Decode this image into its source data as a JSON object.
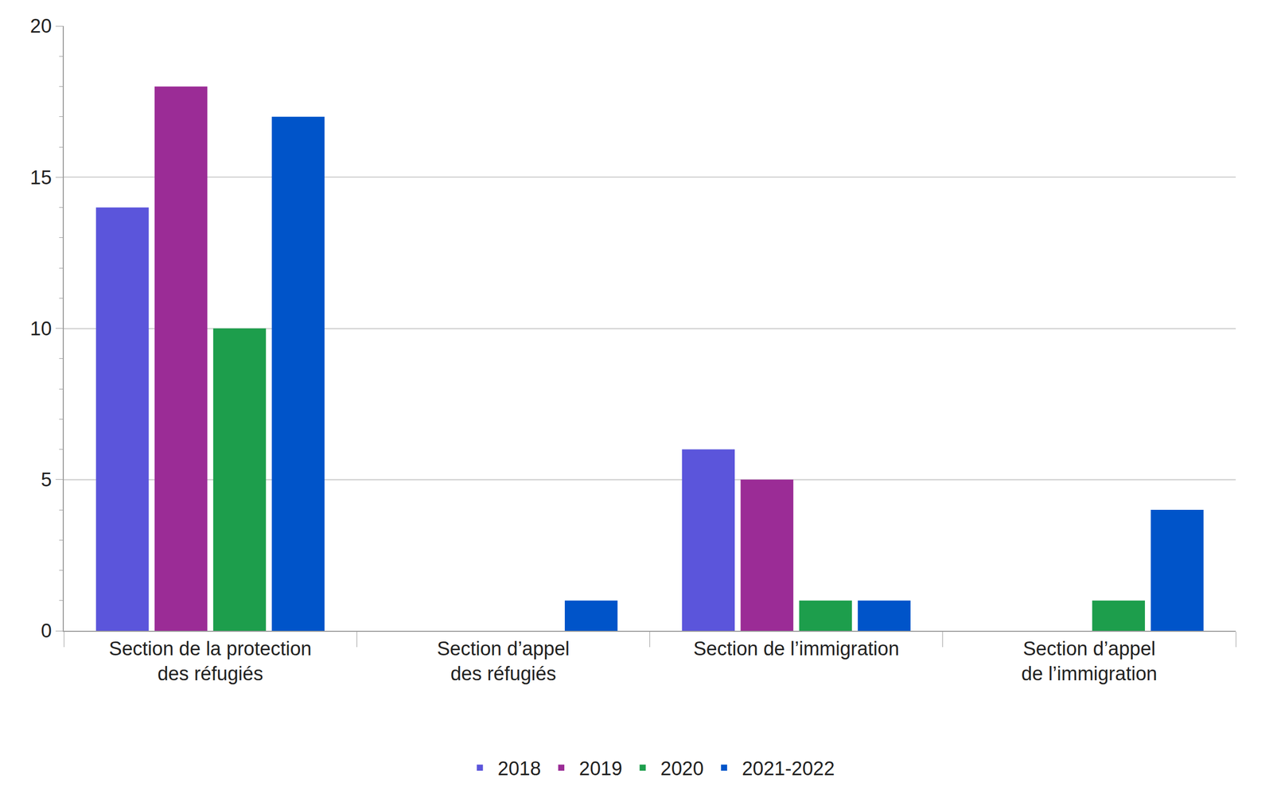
{
  "chart_data": {
    "type": "bar",
    "categories": [
      "Section de la protection\ndes réfugiés",
      "Section d’appel\ndes réfugiés",
      "Section de l’immigration",
      "Section d’appel\nde l’immigration"
    ],
    "series": [
      {
        "name": "2018",
        "color": "#5b55db",
        "values": [
          14,
          0,
          6,
          0
        ]
      },
      {
        "name": "2019",
        "color": "#9b2c96",
        "values": [
          18,
          0,
          5,
          0
        ]
      },
      {
        "name": "2020",
        "color": "#1d9e4c",
        "values": [
          10,
          0,
          1,
          1
        ]
      },
      {
        "name": "2021-2022",
        "color": "#0054c9",
        "values": [
          17,
          1,
          1,
          4
        ]
      }
    ],
    "ylim": [
      0,
      20
    ],
    "yticks": [
      0,
      5,
      10,
      15,
      20
    ],
    "grid": true,
    "legend": "bottom"
  }
}
